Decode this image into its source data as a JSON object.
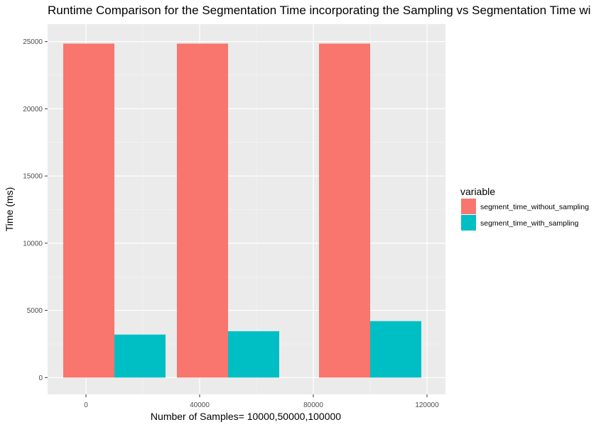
{
  "chart_data": {
    "type": "bar",
    "title": "Runtime Comparison for the Segmentation Time incorporating the Sampling vs Segmentation Time wi",
    "xlabel": "Number of Samples= 10000,50000,100000",
    "ylabel": "Time (ms)",
    "x_ticks": [
      0,
      40000,
      80000,
      120000
    ],
    "y_ticks": [
      0,
      5000,
      10000,
      15000,
      20000,
      25000
    ],
    "xlim": [
      -13500,
      126500
    ],
    "ylim": [
      -1250,
      26300
    ],
    "grid": true,
    "legend_position": "right",
    "legend_title": "variable",
    "categories": [
      10000,
      50000,
      100000
    ],
    "bar_width": 36000,
    "series": [
      {
        "name": "segment_time_without_sampling",
        "color": "#F8766D",
        "values": [
          24850,
          24850,
          24850
        ]
      },
      {
        "name": "segment_time_with_sampling",
        "color": "#00BFC4",
        "values": [
          3200,
          3450,
          4200
        ]
      }
    ]
  }
}
